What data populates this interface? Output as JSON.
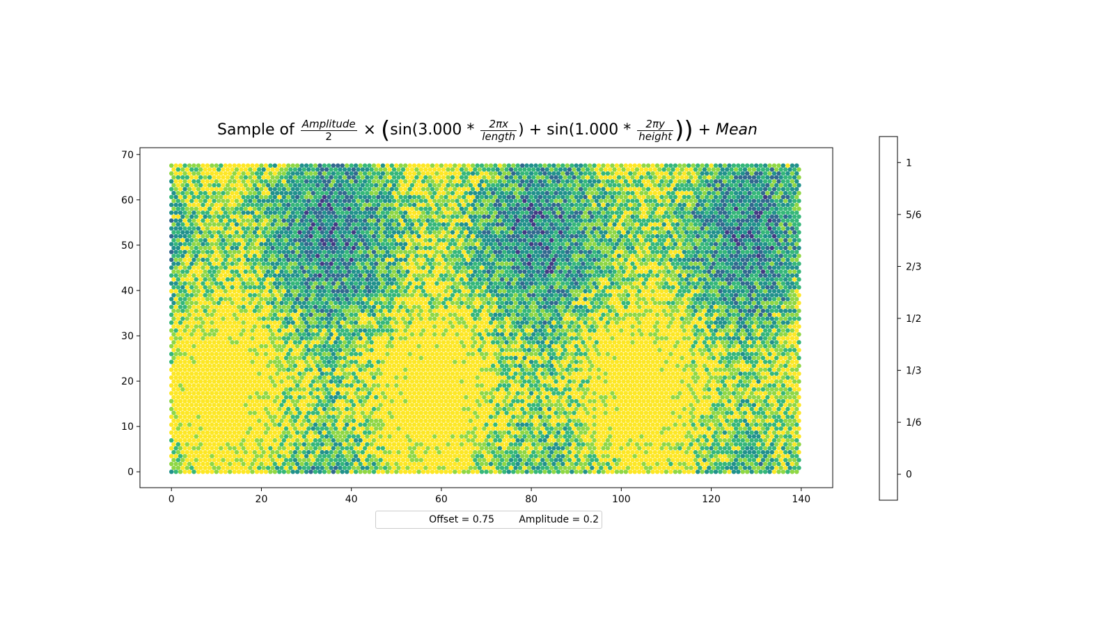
{
  "chart_data": {
    "type": "scatter",
    "title": {
      "prefix": "Sample of",
      "frac1_num": "Amplitude",
      "frac1_den": "2",
      "times": "×",
      "open_paren": "(",
      "sin1": "sin(3.000 *",
      "frac2_num": "2πx",
      "frac2_den": "length",
      "mid": ") + sin(1.000 *",
      "frac3_num": "2πy",
      "frac3_den": "height",
      "close": "))",
      "suffix_plus": "+",
      "suffix_mean": "Mean"
    },
    "formula": {
      "amplitude": 0.2,
      "offset": 0.75,
      "x_frequency": 3.0,
      "y_frequency": 1.0,
      "length": 140,
      "height": 70
    },
    "grid": {
      "x_range": [
        0,
        139.5
      ],
      "y_range": [
        0,
        68
      ],
      "layout": "hexagonal"
    },
    "xlim": [
      -7,
      147
    ],
    "ylim": [
      -3.5,
      71.5
    ],
    "xticks": [
      0,
      20,
      40,
      60,
      80,
      100,
      120,
      140
    ],
    "yticks": [
      0,
      10,
      20,
      30,
      40,
      50,
      60,
      70
    ],
    "xtick_labels": [
      "0",
      "20",
      "40",
      "60",
      "80",
      "100",
      "120",
      "140"
    ],
    "ytick_labels": [
      "0",
      "10",
      "20",
      "30",
      "40",
      "50",
      "60",
      "70"
    ],
    "colorbar": {
      "levels": [
        0,
        0.1667,
        0.3333,
        0.5,
        0.6667,
        0.8333,
        1
      ],
      "tick_labels": [
        "0",
        "1/6",
        "1/3",
        "1/2",
        "2/3",
        "5/6",
        "1"
      ],
      "colors": [
        "#440154",
        "#433983",
        "#31688e",
        "#21918c",
        "#35b779",
        "#8fd744",
        "#fde725"
      ]
    },
    "grid_lines": false
  },
  "legend": {
    "offset_label": "Offset = 0.75",
    "amplitude_label": "Amplitude = 0.2"
  }
}
